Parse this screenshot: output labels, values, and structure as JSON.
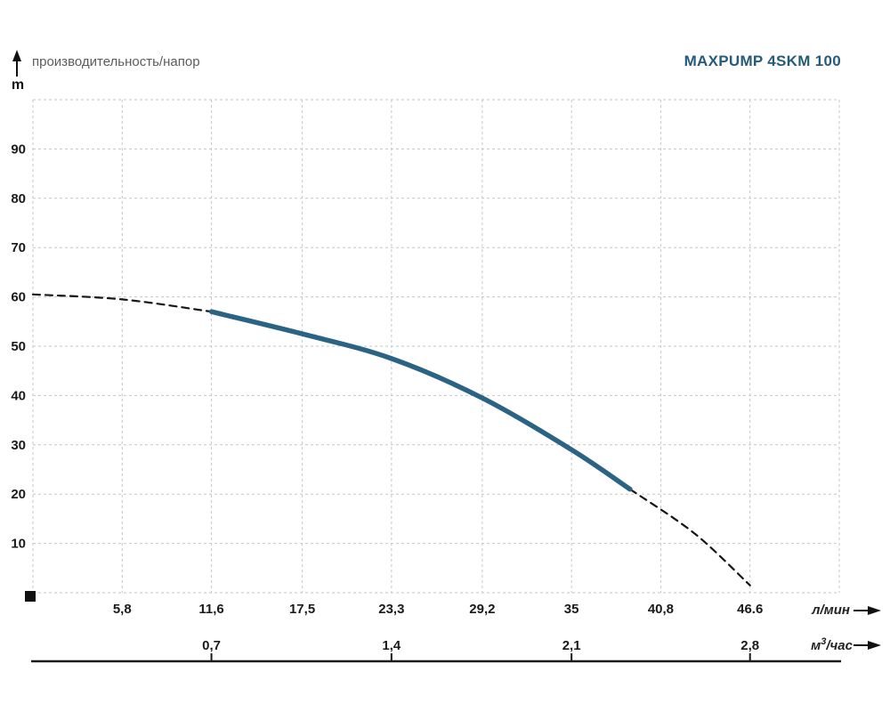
{
  "header": {
    "title": "MAXPUMP 4SKM 100",
    "caption": "производительность/напор",
    "y_axis_unit": "m"
  },
  "chart_data": {
    "type": "line",
    "title": "MAXPUMP 4SKM 100",
    "ylabel": "производительность/напор",
    "y_unit": "m",
    "xlabel_primary": "л/мин",
    "xlabel_secondary": "м3/час",
    "xlim": [
      0,
      52.4
    ],
    "ylim": [
      0,
      100
    ],
    "y_grid_step": 10,
    "grid": true,
    "legend": false,
    "y_ticks": {
      "values": [
        10,
        20,
        30,
        40,
        50,
        60,
        70,
        80,
        90
      ],
      "labels": [
        "10",
        "20",
        "30",
        "40",
        "50",
        "60",
        "70",
        "80",
        "90"
      ]
    },
    "x_ticks_lmin": {
      "unit": "л/мин",
      "values": [
        5.8,
        11.6,
        17.5,
        23.3,
        29.2,
        35,
        40.8,
        46.6
      ],
      "labels": [
        "5,8",
        "11,6",
        "17,5",
        "23,3",
        "29,2",
        "35",
        "40,8",
        "46.6"
      ]
    },
    "x_ticks_m3h": {
      "unit_prefix": "м",
      "unit_sup": "3",
      "unit_suffix": "/час",
      "values_lmin": [
        11.6,
        23.3,
        35,
        46.6
      ],
      "labels": [
        "0,7",
        "1,4",
        "2,1",
        "2,8"
      ]
    },
    "series": [
      {
        "name": "pump-curve-operating-range",
        "style": "solid",
        "color": "#2b6384",
        "points": [
          [
            11.6,
            57
          ],
          [
            17.5,
            52.5
          ],
          [
            23.3,
            47.5
          ],
          [
            29.2,
            39.5
          ],
          [
            35,
            29
          ],
          [
            38.8,
            21
          ]
        ]
      },
      {
        "name": "pump-curve-extrapolation-left",
        "style": "dashed",
        "color": "#161616",
        "points": [
          [
            0,
            60.5
          ],
          [
            5.8,
            59.5
          ],
          [
            11.6,
            57
          ]
        ]
      },
      {
        "name": "pump-curve-extrapolation-right",
        "style": "dashed",
        "color": "#161616",
        "points": [
          [
            38.8,
            21
          ],
          [
            43,
            12
          ],
          [
            46.6,
            1.5
          ]
        ]
      }
    ],
    "origin_marker": "black-square",
    "colors": {
      "curve": "#2b6384",
      "grid": "#c6c6c6",
      "title": "#265b7a",
      "caption": "#5c5c5c",
      "axis": "#1a1a1a"
    }
  }
}
